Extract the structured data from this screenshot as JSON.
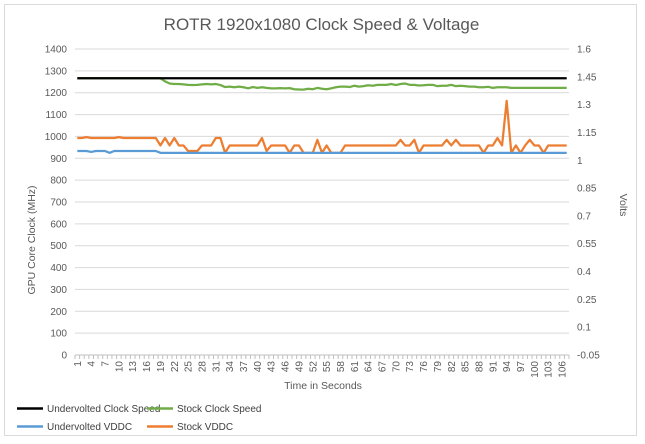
{
  "chart_data": {
    "type": "line",
    "title": "ROTR 1920x1080 Clock Speed & Voltage",
    "xlabel": "Time in Seconds",
    "ylabel": "GPU Core Clock (MHz)",
    "y2label": "Volts",
    "ylim": [
      0,
      1400
    ],
    "y2lim": [
      -0.05,
      1.6
    ],
    "y_ticks": [
      "0",
      "100",
      "200",
      "300",
      "400",
      "500",
      "600",
      "700",
      "800",
      "900",
      "1000",
      "1100",
      "1200",
      "1300",
      "1400"
    ],
    "y2_ticks": [
      "-0.05",
      "0.1",
      "0.25",
      "0.4",
      "0.55",
      "0.7",
      "0.85",
      "1",
      "1.15",
      "1.3",
      "1.45",
      "1.6"
    ],
    "x_count": 107,
    "x_tick_labels": [
      "1",
      "4",
      "7",
      "10",
      "13",
      "16",
      "19",
      "22",
      "25",
      "28",
      "31",
      "34",
      "37",
      "40",
      "43",
      "46",
      "49",
      "52",
      "55",
      "58",
      "61",
      "64",
      "67",
      "70",
      "73",
      "76",
      "79",
      "82",
      "85",
      "88",
      "91",
      "94",
      "97",
      "100",
      "103",
      "106"
    ],
    "grid": true,
    "legend_position": "bottom",
    "colors": {
      "undervolted_clock": "#000000",
      "stock_clock": "#70ad47",
      "undervolted_vddc": "#5b9bd5",
      "stock_vddc": "#ed7d31"
    },
    "series": [
      {
        "name": "Undervolted Clock Speed",
        "axis": "left",
        "values": [
          1266,
          1266,
          1266,
          1266,
          1266,
          1266,
          1266,
          1266,
          1266,
          1266,
          1266,
          1266,
          1266,
          1266,
          1266,
          1266,
          1266,
          1266,
          1266,
          1266,
          1266,
          1266,
          1266,
          1266,
          1266,
          1266,
          1266,
          1266,
          1266,
          1266,
          1266,
          1266,
          1266,
          1266,
          1266,
          1266,
          1266,
          1266,
          1266,
          1266,
          1266,
          1266,
          1266,
          1266,
          1266,
          1266,
          1266,
          1266,
          1266,
          1266,
          1266,
          1266,
          1266,
          1266,
          1266,
          1266,
          1266,
          1266,
          1266,
          1266,
          1266,
          1266,
          1266,
          1266,
          1266,
          1266,
          1266,
          1266,
          1266,
          1266,
          1266,
          1266,
          1266,
          1266,
          1266,
          1266,
          1266,
          1266,
          1266,
          1266,
          1266,
          1266,
          1266,
          1266,
          1266,
          1266,
          1266,
          1266,
          1266,
          1266,
          1266,
          1266,
          1266,
          1266,
          1266,
          1266,
          1266,
          1266,
          1266,
          1266,
          1266,
          1266,
          1266,
          1266,
          1266,
          1266,
          1266
        ]
      },
      {
        "name": "Stock Clock Speed",
        "axis": "left",
        "values": [
          1266,
          1266,
          1266,
          1266,
          1266,
          1266,
          1266,
          1266,
          1266,
          1266,
          1266,
          1266,
          1266,
          1266,
          1266,
          1266,
          1266,
          1266,
          1266,
          1252,
          1242,
          1240,
          1240,
          1238,
          1236,
          1235,
          1236,
          1238,
          1240,
          1238,
          1240,
          1235,
          1226,
          1228,
          1225,
          1228,
          1225,
          1220,
          1226,
          1222,
          1225,
          1222,
          1220,
          1220,
          1221,
          1220,
          1221,
          1216,
          1215,
          1214,
          1218,
          1216,
          1222,
          1218,
          1216,
          1220,
          1225,
          1228,
          1228,
          1226,
          1232,
          1228,
          1230,
          1234,
          1232,
          1236,
          1236,
          1236,
          1240,
          1235,
          1240,
          1242,
          1236,
          1236,
          1233,
          1234,
          1236,
          1236,
          1230,
          1232,
          1232,
          1236,
          1230,
          1232,
          1230,
          1228,
          1228,
          1225,
          1225,
          1227,
          1222,
          1225,
          1225,
          1225,
          1222,
          1222,
          1222,
          1222,
          1222,
          1222,
          1222,
          1222,
          1222,
          1222,
          1222,
          1222,
          1222
        ]
      },
      {
        "name": "Undervolted VDDC",
        "axis": "right",
        "values": [
          1.05,
          1.05,
          1.05,
          1.045,
          1.05,
          1.05,
          1.05,
          1.04,
          1.05,
          1.05,
          1.05,
          1.05,
          1.05,
          1.05,
          1.05,
          1.05,
          1.05,
          1.05,
          1.04,
          1.04,
          1.04,
          1.04,
          1.04,
          1.04,
          1.04,
          1.04,
          1.04,
          1.04,
          1.04,
          1.04,
          1.04,
          1.04,
          1.04,
          1.04,
          1.04,
          1.04,
          1.04,
          1.04,
          1.04,
          1.04,
          1.04,
          1.04,
          1.04,
          1.04,
          1.04,
          1.04,
          1.04,
          1.04,
          1.04,
          1.04,
          1.04,
          1.04,
          1.04,
          1.04,
          1.04,
          1.04,
          1.04,
          1.04,
          1.04,
          1.04,
          1.04,
          1.04,
          1.04,
          1.04,
          1.04,
          1.04,
          1.04,
          1.04,
          1.04,
          1.04,
          1.04,
          1.04,
          1.04,
          1.04,
          1.04,
          1.04,
          1.04,
          1.04,
          1.04,
          1.04,
          1.04,
          1.04,
          1.04,
          1.04,
          1.04,
          1.04,
          1.04,
          1.04,
          1.04,
          1.04,
          1.04,
          1.04,
          1.04,
          1.04,
          1.04,
          1.04,
          1.04,
          1.04,
          1.04,
          1.04,
          1.04,
          1.04,
          1.04,
          1.04,
          1.04,
          1.04,
          1.04
        ]
      },
      {
        "name": "Stock VDDC",
        "axis": "right",
        "values": [
          1.12,
          1.12,
          1.125,
          1.12,
          1.12,
          1.12,
          1.12,
          1.12,
          1.12,
          1.125,
          1.12,
          1.12,
          1.12,
          1.12,
          1.12,
          1.12,
          1.12,
          1.12,
          1.08,
          1.12,
          1.08,
          1.12,
          1.08,
          1.08,
          1.05,
          1.05,
          1.05,
          1.08,
          1.08,
          1.08,
          1.12,
          1.12,
          1.04,
          1.08,
          1.08,
          1.08,
          1.08,
          1.08,
          1.08,
          1.08,
          1.12,
          1.05,
          1.08,
          1.08,
          1.08,
          1.08,
          1.04,
          1.08,
          1.08,
          1.04,
          1.04,
          1.04,
          1.11,
          1.04,
          1.08,
          1.04,
          1.04,
          1.04,
          1.08,
          1.08,
          1.08,
          1.08,
          1.08,
          1.08,
          1.08,
          1.08,
          1.08,
          1.08,
          1.08,
          1.08,
          1.11,
          1.08,
          1.08,
          1.11,
          1.04,
          1.08,
          1.08,
          1.08,
          1.08,
          1.08,
          1.11,
          1.08,
          1.11,
          1.08,
          1.08,
          1.08,
          1.08,
          1.08,
          1.04,
          1.08,
          1.08,
          1.12,
          1.08,
          1.32,
          1.04,
          1.08,
          1.04,
          1.08,
          1.11,
          1.08,
          1.08,
          1.04,
          1.08,
          1.08,
          1.08,
          1.08,
          1.08
        ]
      }
    ]
  }
}
